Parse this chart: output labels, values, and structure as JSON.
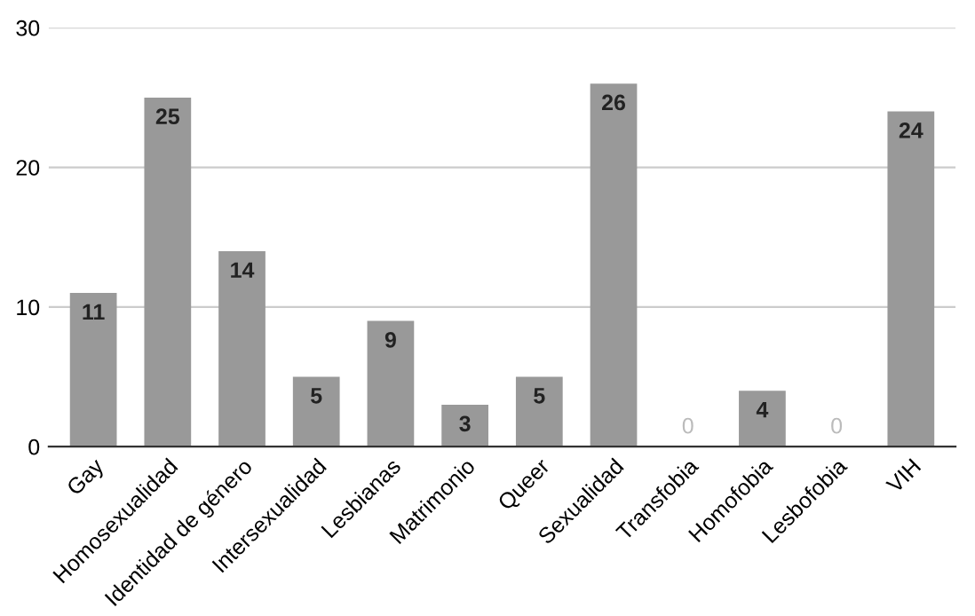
{
  "chart_data": {
    "type": "bar",
    "categories": [
      "Gay",
      "Homosexualidad",
      "Identidad de género",
      "Intersexualidad",
      "Lesbianas",
      "Matrimonio",
      "Queer",
      "Sexualidad",
      "Transfobia",
      "Homofobia",
      "Lesbofobia",
      "VIH"
    ],
    "values": [
      11,
      25,
      14,
      5,
      9,
      3,
      5,
      26,
      0,
      4,
      0,
      24
    ],
    "color": "#999999",
    "ylim": [
      0,
      30
    ],
    "yticks": [
      0,
      10,
      20,
      30
    ],
    "grid": "y",
    "data_labels": true
  }
}
